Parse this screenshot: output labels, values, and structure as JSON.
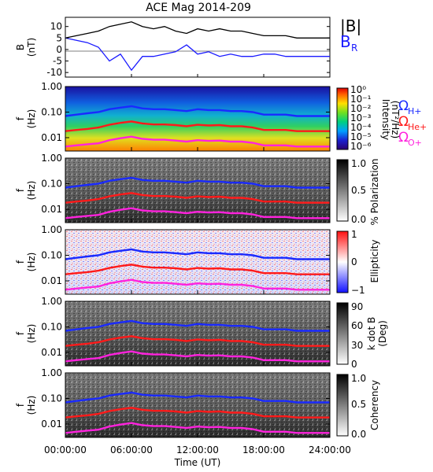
{
  "title": "ACE Mag 2014-209",
  "colors": {
    "total_field": "#000000",
    "br": "#1a1aff",
    "h_plus": "#1a2aff",
    "he_plus": "#ff1a1a",
    "o_plus": "#ff22dd"
  },
  "panel1": {
    "ylabel_line1": "B",
    "ylabel_line2": "(nT)",
    "legend_btot": "|B|",
    "legend_br_main": "B",
    "legend_br_sub": "R",
    "yticks": [
      "10",
      "5",
      "0",
      "-5",
      "-10"
    ]
  },
  "freq_ticks": [
    "1.00",
    "0.10",
    "0.01"
  ],
  "freq_label_line1": "f",
  "freq_label_line2": "(Hz)",
  "gyro_legend": {
    "h_main": "Ω",
    "h_sub": "H+",
    "he_main": "Ω",
    "he_sub": "He+",
    "o_main": "Ω",
    "o_sub": "O+"
  },
  "colorbars": {
    "intensity": {
      "label_line1": "Intensity",
      "label_line2": "(nT²/Hz)",
      "ticks": [
        "10⁰",
        "10⁻¹",
        "10⁻²",
        "10⁻³",
        "10⁻⁴",
        "10⁻⁵",
        "10⁻⁶"
      ]
    },
    "polarization": {
      "label": "% Polarization",
      "ticks": [
        "1.0",
        "0.5",
        "0.0"
      ]
    },
    "ellipticity": {
      "label": "Ellipticity",
      "ticks": [
        "1",
        "0",
        "−1"
      ]
    },
    "kdotb": {
      "label_line1": "k dot B",
      "label_line2": "(Deg)",
      "ticks": [
        "90",
        "60",
        "30",
        "0"
      ]
    },
    "coherency": {
      "label": "Coherency",
      "ticks": [
        "1.0",
        "0.5",
        "0.0"
      ]
    }
  },
  "xaxis": {
    "ticks": [
      "00:00:00",
      "06:00:00",
      "12:00:00",
      "18:00:00",
      "24:00:00"
    ],
    "label": "Time (UT)"
  },
  "chart_data": {
    "type": "line",
    "title": "ACE Mag 2014-209",
    "xlabel": "Time (UT)",
    "x_hours": [
      0,
      1,
      2,
      3,
      4,
      5,
      6,
      7,
      8,
      9,
      10,
      11,
      12,
      13,
      14,
      15,
      16,
      17,
      18,
      19,
      20,
      21,
      22,
      23,
      24
    ],
    "field_series": [
      {
        "name": "|B|",
        "unit": "nT",
        "values": [
          5,
          6,
          7,
          8,
          10,
          11,
          12,
          10,
          9,
          10,
          8,
          7,
          9,
          8,
          9,
          8,
          8,
          7,
          6,
          6,
          6,
          5,
          5,
          5,
          5
        ]
      },
      {
        "name": "B_R",
        "unit": "nT",
        "values": [
          5,
          4,
          3,
          1,
          -5,
          -2,
          -9,
          -3,
          -3,
          -2,
          -1,
          2,
          -2,
          -1,
          -3,
          -2,
          -3,
          -3,
          -2,
          -2,
          -3,
          -3,
          -3,
          -3,
          -3
        ]
      }
    ],
    "field_ylim": [
      -12,
      14
    ],
    "freq_ylim_hz": [
      0.003,
      1.0
    ],
    "freq_scale": "log",
    "gyrofrequencies_hz": [
      {
        "name": "H+",
        "values": [
          0.07,
          0.08,
          0.09,
          0.1,
          0.13,
          0.15,
          0.17,
          0.14,
          0.13,
          0.13,
          0.12,
          0.11,
          0.13,
          0.12,
          0.12,
          0.11,
          0.11,
          0.1,
          0.08,
          0.08,
          0.08,
          0.07,
          0.07,
          0.07,
          0.07
        ]
      },
      {
        "name": "He+",
        "values": [
          0.018,
          0.02,
          0.022,
          0.025,
          0.032,
          0.038,
          0.043,
          0.036,
          0.033,
          0.033,
          0.031,
          0.028,
          0.032,
          0.03,
          0.031,
          0.028,
          0.028,
          0.025,
          0.02,
          0.02,
          0.02,
          0.018,
          0.018,
          0.018,
          0.018
        ]
      },
      {
        "name": "O+",
        "values": [
          0.0045,
          0.005,
          0.0055,
          0.006,
          0.008,
          0.0095,
          0.011,
          0.009,
          0.0083,
          0.0083,
          0.0077,
          0.007,
          0.008,
          0.0075,
          0.0077,
          0.007,
          0.007,
          0.0063,
          0.005,
          0.005,
          0.005,
          0.0045,
          0.0045,
          0.0045,
          0.0045
        ]
      }
    ]
  }
}
